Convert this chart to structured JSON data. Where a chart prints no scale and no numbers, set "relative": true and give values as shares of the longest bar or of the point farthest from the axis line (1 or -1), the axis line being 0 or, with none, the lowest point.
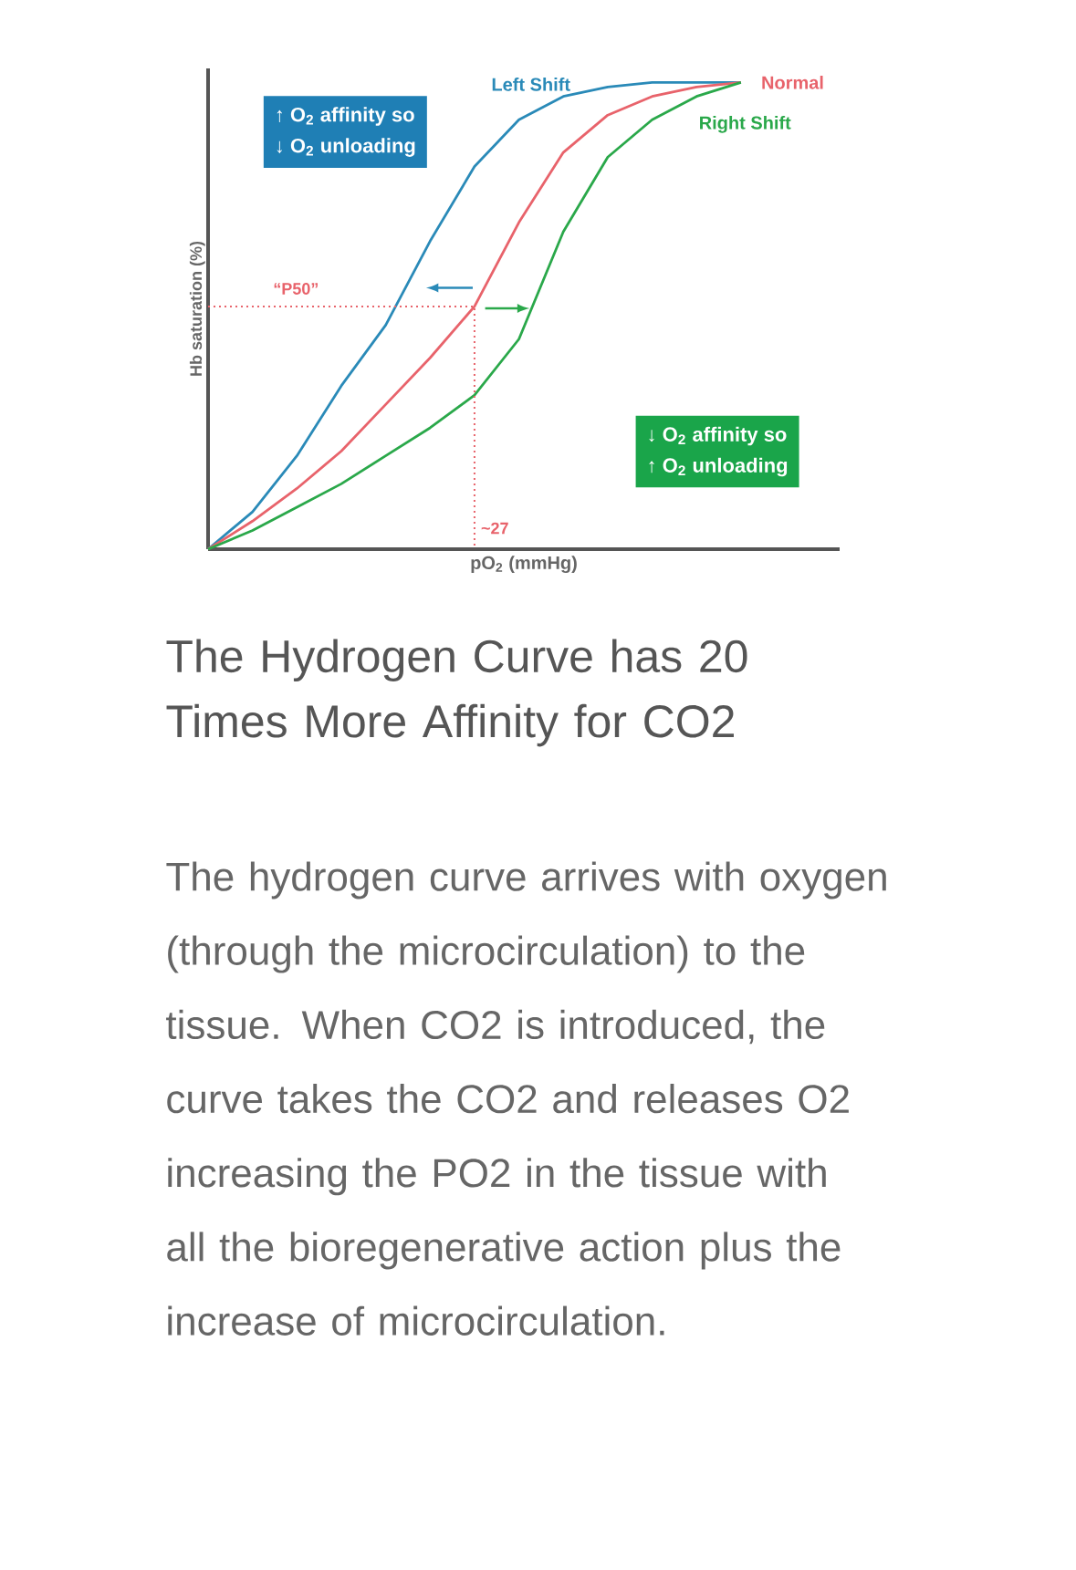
{
  "chart_data": {
    "type": "line",
    "relative": true,
    "title": "The Hydrogen Curve has 20 Times More Affinity for CO2",
    "xlabel": "pO$_{2}$ (mmHg)",
    "ylabel": "Hb saturation (%)",
    "legend": false,
    "marker": "none",
    "line_style": "solid",
    "categories": [
      null,
      null,
      null,
      null,
      null,
      null,
      null,
      null,
      null,
      null,
      null,
      null,
      null
    ],
    "series": [
      {
        "name": "Left Shift",
        "color": "#2a8ab8",
        "values": [
          0,
          0.08,
          0.2,
          0.35,
          0.48,
          0.66,
          0.82,
          0.92,
          0.97,
          0.99,
          1,
          1,
          1
        ]
      },
      {
        "name": "Normal",
        "color": "#e8636b",
        "values": [
          0,
          0.06,
          0.13,
          0.21,
          0.31,
          0.41,
          0.52,
          0.7,
          0.85,
          0.93,
          0.97,
          0.99,
          1
        ]
      },
      {
        "name": "Right Shift",
        "color": "#2aa84a",
        "values": [
          0,
          0.04,
          0.09,
          0.14,
          0.2,
          0.26,
          0.33,
          0.45,
          0.68,
          0.84,
          0.92,
          0.97,
          1
        ]
      }
    ],
    "ref_lines": [
      {
        "axis": "y",
        "value": 0.52,
        "label": "“P50”",
        "color": "#e8636b",
        "line_style": "dotted"
      }
    ],
    "annotations": [
      "↑ O$_{2}$ affinity so",
      "↓ O$_{2}$ unloading",
      "↓ O$_{2}$ affinity so",
      "↑ O$_{2}$ unloading",
      "~27",
      "The hydrogen curve arrives with oxygen (through the microcirculation) to the tissue. When CO2 is introduced, the curve takes the CO2 and releases O2 increasing the PO2 in the tissue with all the bioregenerative action plus the increase of microcirculation."
    ]
  }
}
